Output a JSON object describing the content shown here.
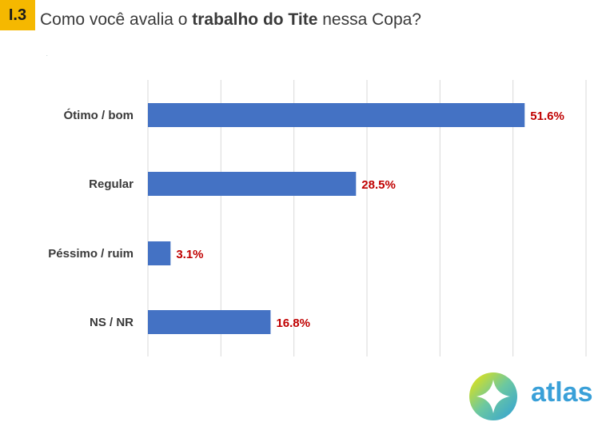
{
  "header": {
    "badge": "I.3",
    "title_pre": "Como você avalia o ",
    "title_bold": "trabalho do Tite",
    "title_post": " nessa Copa?",
    "small_mark": "."
  },
  "colors": {
    "bar": "#4472c4",
    "value_label": "#c00000",
    "category_label": "#3a3a3a",
    "grid": "#d9d9d9",
    "badge": "#f5b800"
  },
  "chart_data": {
    "type": "bar",
    "orientation": "horizontal",
    "categories": [
      "Ótimo / bom",
      "Regular",
      "Péssimo / ruim",
      "NS / NR"
    ],
    "values": [
      51.6,
      28.5,
      3.1,
      16.8
    ],
    "value_labels": [
      "51.6%",
      "28.5%",
      "3.1%",
      "16.8%"
    ],
    "xlim": [
      0,
      60
    ],
    "grid": true,
    "legend": "none"
  },
  "logo": {
    "text": "atlas",
    "icon": "atlas-compass-logo-icon"
  }
}
